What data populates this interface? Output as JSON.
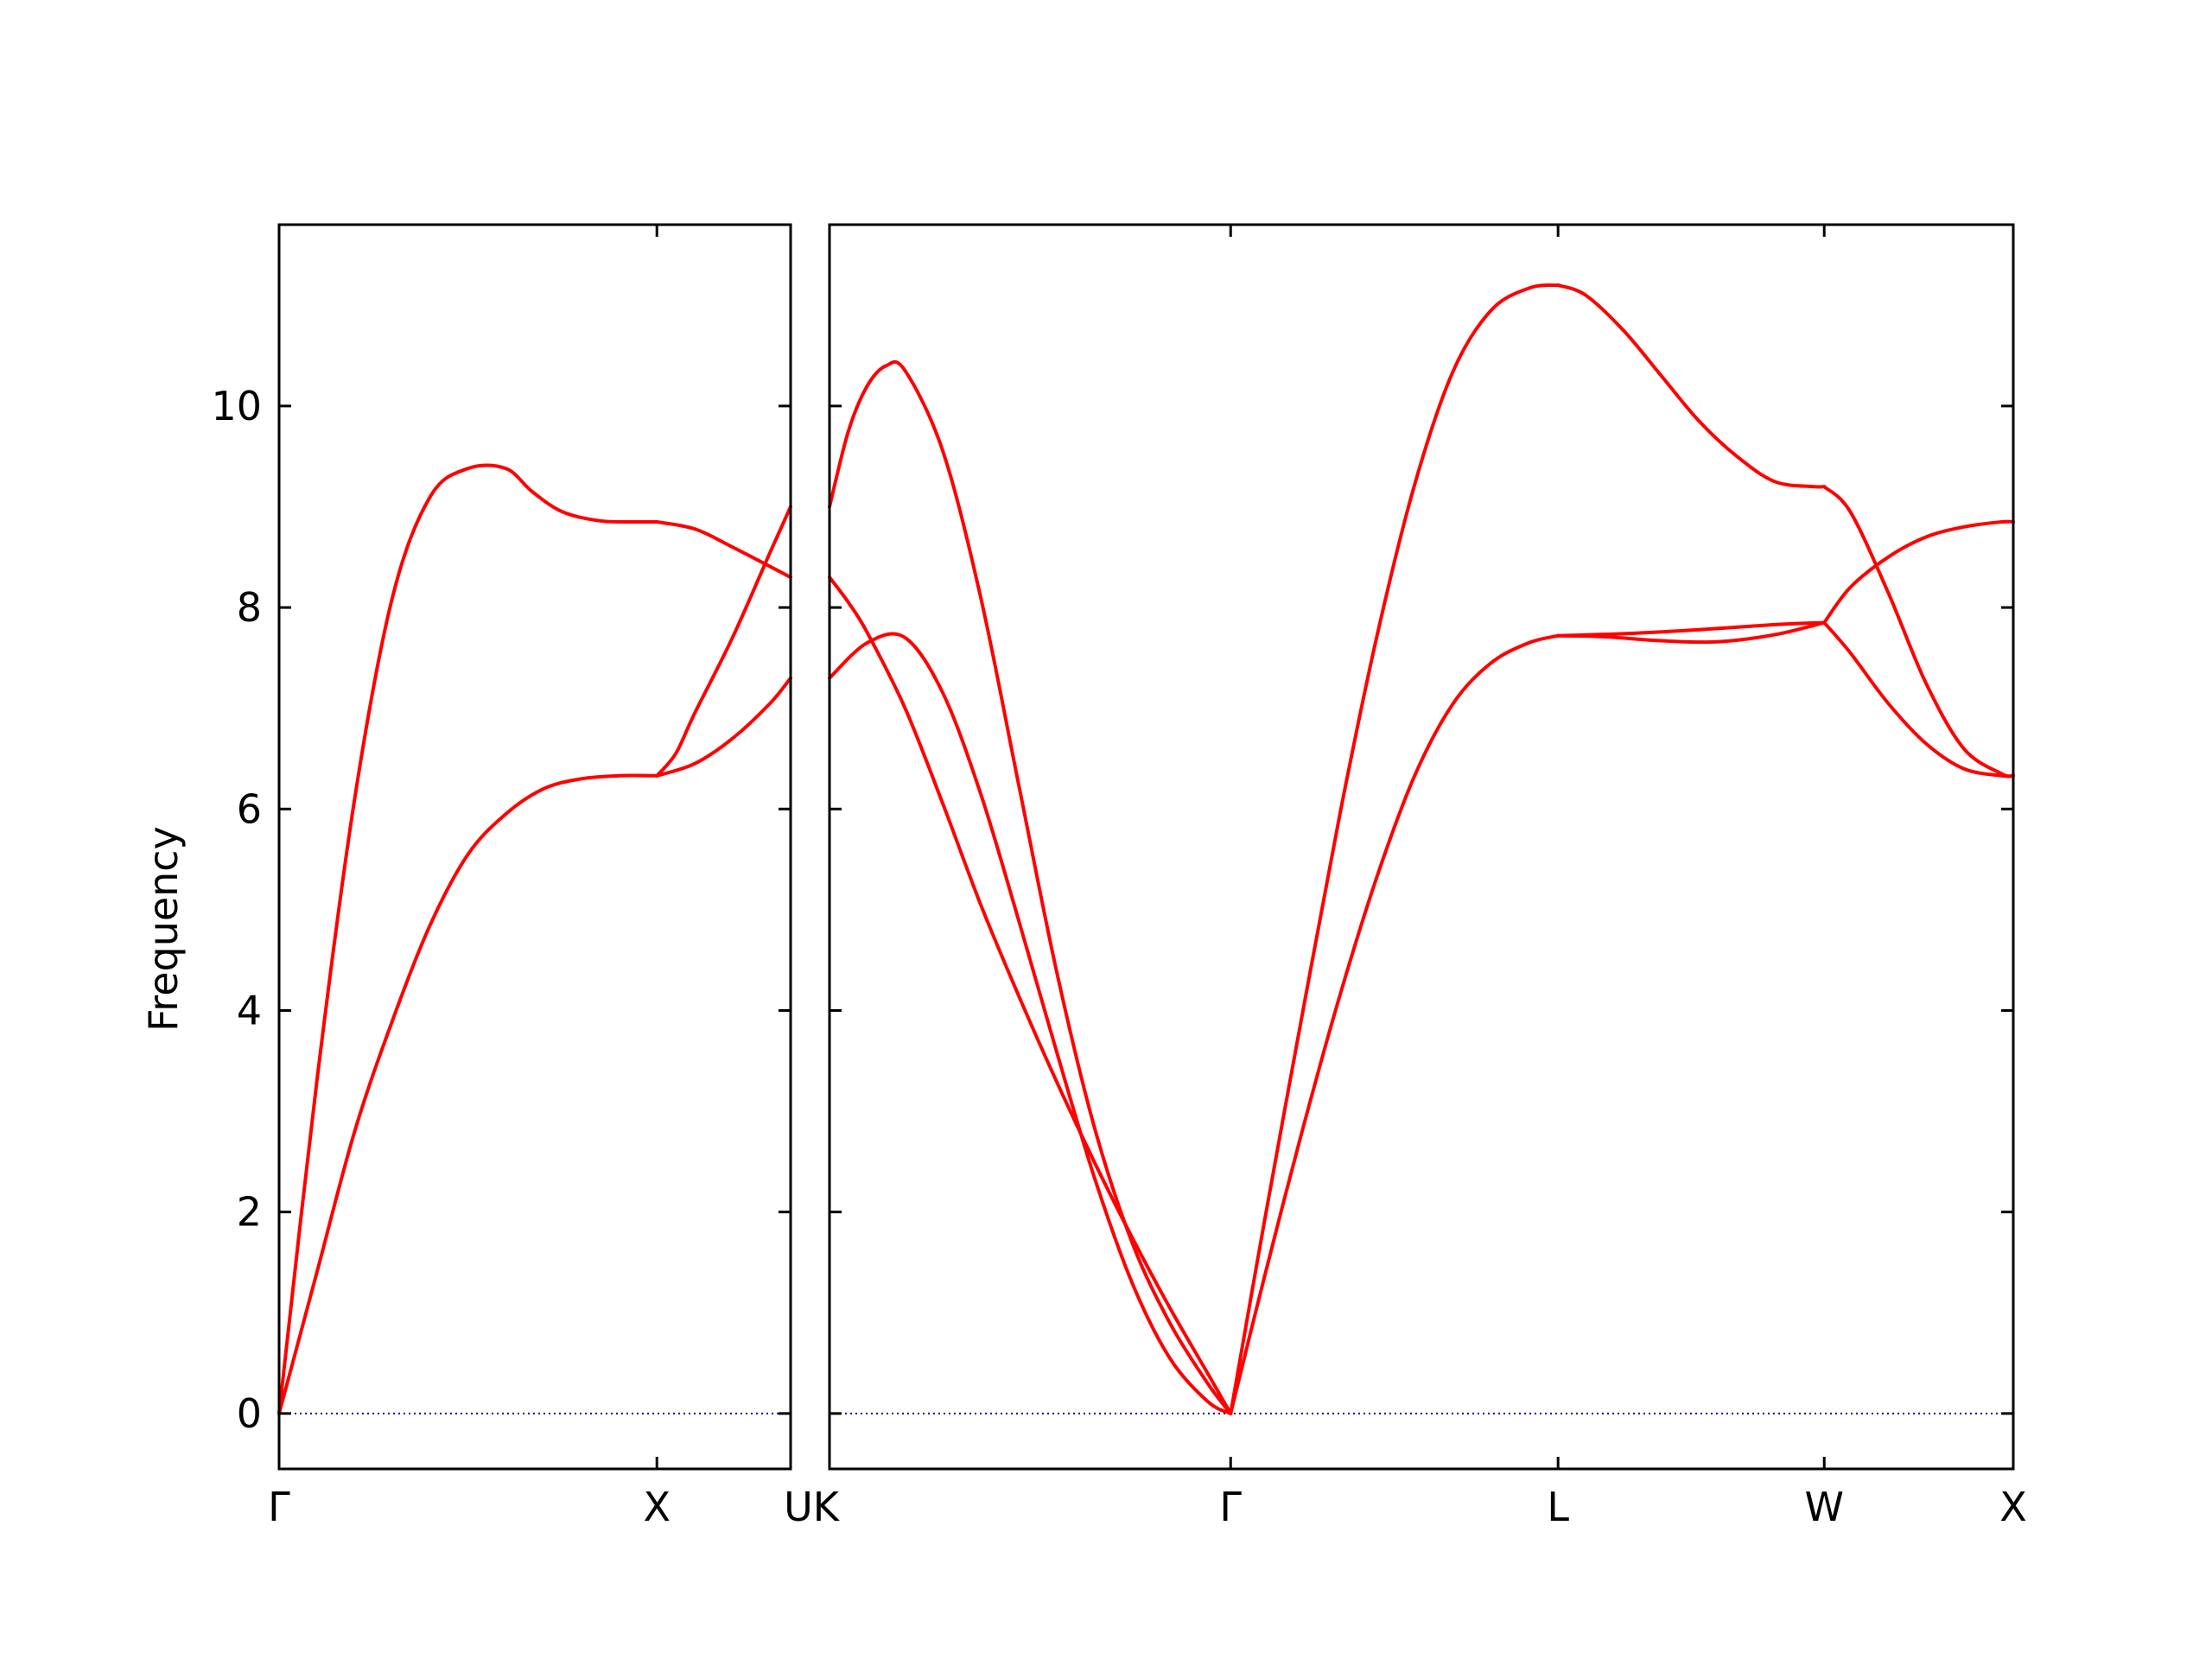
{
  "chart_data": {
    "type": "line",
    "ylabel": "Frequency",
    "ylim": [
      -0.55,
      11.8
    ],
    "yticks": [
      0,
      2,
      4,
      6,
      8,
      10
    ],
    "grid": false,
    "legend": "none",
    "line_color": "#ff0000",
    "zero_line_color": "#0000aa",
    "panels": [
      {
        "segments": [
          {
            "from": "Γ",
            "to": "X",
            "x_start": 0,
            "x_end": 1,
            "series": [
              {
                "x": [
                  0,
                  0.1,
                  0.2,
                  0.3,
                  0.4,
                  0.5,
                  0.6,
                  0.67,
                  0.75,
                  0.85,
                  0.95,
                  1.0
                ],
                "y": [
                  0,
                  3.3,
                  6.1,
                  8.1,
                  9.1,
                  9.38,
                  9.38,
                  9.15,
                  8.95,
                  8.86,
                  8.85,
                  8.85
                ]
              },
              {
                "x": [
                  0,
                  0.1,
                  0.2,
                  0.3,
                  0.4,
                  0.5,
                  0.6,
                  0.7,
                  0.8,
                  0.9,
                  1.0
                ],
                "y": [
                  0,
                  1.4,
                  2.8,
                  3.9,
                  4.85,
                  5.55,
                  5.95,
                  6.2,
                  6.3,
                  6.33,
                  6.33
                ]
              }
            ]
          },
          {
            "from": "X",
            "to": "U",
            "x_start": 1,
            "x_end": 1.354,
            "series": [
              {
                "x": [
                  1.0,
                  1.1,
                  1.2,
                  1.354
                ],
                "y": [
                  8.85,
                  8.78,
                  8.6,
                  8.3
                ]
              },
              {
                "x": [
                  1.0,
                  1.05,
                  1.1,
                  1.2,
                  1.3,
                  1.354
                ],
                "y": [
                  6.33,
                  6.55,
                  6.95,
                  7.7,
                  8.55,
                  9.0
                ]
              },
              {
                "x": [
                  1.0,
                  1.1,
                  1.2,
                  1.3,
                  1.354
                ],
                "y": [
                  6.33,
                  6.45,
                  6.7,
                  7.05,
                  7.3
                ]
              }
            ]
          }
        ],
        "tick_positions": [
          0,
          1,
          1.354
        ],
        "tick_labels": [
          "Γ",
          "X",
          ""
        ]
      },
      {
        "segments": [
          {
            "from": "K",
            "to": "Γ",
            "x_start": 0,
            "x_end": 1.061,
            "series": [
              {
                "x": [
                  0,
                  0.05,
                  0.1,
                  0.15,
                  0.2,
                  0.3,
                  0.4,
                  0.5,
                  0.6,
                  0.7,
                  0.8,
                  0.9,
                  1.0,
                  1.061
                ],
                "y": [
                  9.0,
                  9.75,
                  10.2,
                  10.4,
                  10.35,
                  9.55,
                  8.1,
                  6.25,
                  4.4,
                  2.85,
                  1.7,
                  0.9,
                  0.3,
                  0
                ]
              },
              {
                "x": [
                  0,
                  0.05,
                  0.1,
                  0.2,
                  0.3,
                  0.4,
                  0.5,
                  0.6,
                  0.7,
                  0.8,
                  0.9,
                  1.0,
                  1.061
                ],
                "y": [
                  8.3,
                  8.05,
                  7.75,
                  7.0,
                  6.05,
                  5.05,
                  4.15,
                  3.3,
                  2.5,
                  1.75,
                  1.05,
                  0.4,
                  0
                ]
              },
              {
                "x": [
                  0,
                  0.1,
                  0.2,
                  0.3,
                  0.4,
                  0.5,
                  0.6,
                  0.7,
                  0.8,
                  0.9,
                  1.0,
                  1.061
                ],
                "y": [
                  7.3,
                  7.65,
                  7.7,
                  7.15,
                  6.15,
                  4.9,
                  3.6,
                  2.35,
                  1.3,
                  0.55,
                  0.12,
                  0
                ]
              }
            ]
          },
          {
            "from": "Γ",
            "to": "L",
            "x_start": 1.061,
            "x_end": 1.927,
            "series": [
              {
                "x": [
                  1.061,
                  1.15,
                  1.25,
                  1.35,
                  1.45,
                  1.55,
                  1.65,
                  1.75,
                  1.85,
                  1.927
                ],
                "y": [
                  0,
                  1.9,
                  3.95,
                  5.95,
                  7.75,
                  9.25,
                  10.35,
                  10.95,
                  11.17,
                  11.2
                ]
              },
              {
                "x": [
                  1.061,
                  1.15,
                  1.25,
                  1.35,
                  1.45,
                  1.55,
                  1.65,
                  1.75,
                  1.85,
                  1.927
                ],
                "y": [
                  0,
                  1.35,
                  2.8,
                  4.15,
                  5.35,
                  6.35,
                  7.05,
                  7.45,
                  7.65,
                  7.72
                ]
              }
            ]
          },
          {
            "from": "L",
            "to": "W",
            "x_start": 1.927,
            "x_end": 2.631,
            "series": [
              {
                "x": [
                  1.927,
                  2.0,
                  2.1,
                  2.2,
                  2.3,
                  2.4,
                  2.5,
                  2.6,
                  2.631
                ],
                "y": [
                  11.2,
                  11.1,
                  10.75,
                  10.3,
                  9.85,
                  9.5,
                  9.25,
                  9.2,
                  9.2
                ]
              },
              {
                "x": [
                  1.927,
                  2.1,
                  2.3,
                  2.5,
                  2.631
                ],
                "y": [
                  7.72,
                  7.74,
                  7.78,
                  7.83,
                  7.85
                ]
              },
              {
                "x": [
                  1.927,
                  2.05,
                  2.2,
                  2.35,
                  2.5,
                  2.631
                ],
                "y": [
                  7.72,
                  7.71,
                  7.67,
                  7.66,
                  7.73,
                  7.85
                ]
              }
            ]
          },
          {
            "from": "W",
            "to": "X",
            "x_start": 2.631,
            "x_end": 3.131,
            "series": [
              {
                "x": [
                  2.631,
                  2.7,
                  2.8,
                  2.9,
                  3.0,
                  3.1,
                  3.131
                ],
                "y": [
                  9.2,
                  8.95,
                  8.15,
                  7.25,
                  6.6,
                  6.35,
                  6.33
                ]
              },
              {
                "x": [
                  2.631,
                  2.7,
                  2.8,
                  2.9,
                  3.0,
                  3.1,
                  3.131
                ],
                "y": [
                  7.85,
                  8.2,
                  8.5,
                  8.7,
                  8.8,
                  8.85,
                  8.85
                ]
              },
              {
                "x": [
                  2.631,
                  2.7,
                  2.8,
                  2.9,
                  3.0,
                  3.1,
                  3.131
                ],
                "y": [
                  7.85,
                  7.55,
                  7.05,
                  6.65,
                  6.4,
                  6.33,
                  6.33
                ]
              }
            ]
          }
        ],
        "tick_positions": [
          0,
          1.061,
          1.927,
          2.631,
          3.131
        ],
        "tick_labels": [
          "",
          "Γ",
          "L",
          "W",
          "X"
        ]
      }
    ],
    "boundary_label": "UK"
  }
}
